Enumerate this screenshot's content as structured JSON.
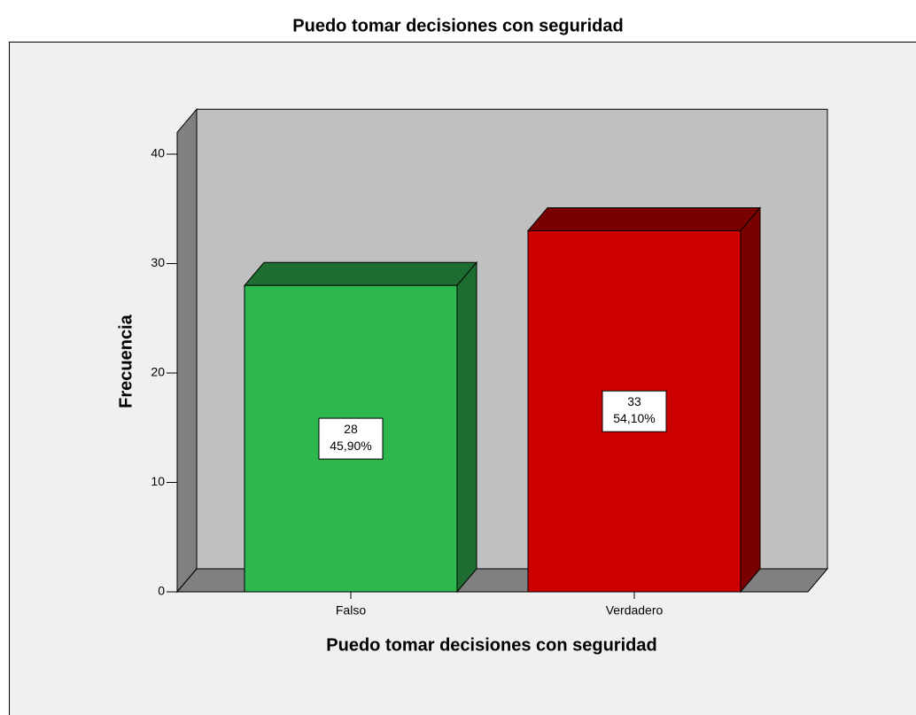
{
  "chart_data": {
    "type": "bar3d",
    "title": "Puedo tomar decisiones con seguridad",
    "xlabel": "Puedo tomar decisiones con seguridad",
    "ylabel": "Frecuencia",
    "categories": [
      "Falso",
      "Verdadero"
    ],
    "values": [
      28,
      33
    ],
    "percent_values": [
      45.9,
      54.1
    ],
    "percent_labels": [
      "45,90%",
      "54,10%"
    ],
    "colors": [
      "#2db84d",
      "#cc0000"
    ],
    "top_colors": [
      "#1f6e31",
      "#7a0000"
    ],
    "ylim": [
      0,
      42
    ],
    "yticks": [
      0,
      10,
      20,
      30,
      40
    ]
  }
}
